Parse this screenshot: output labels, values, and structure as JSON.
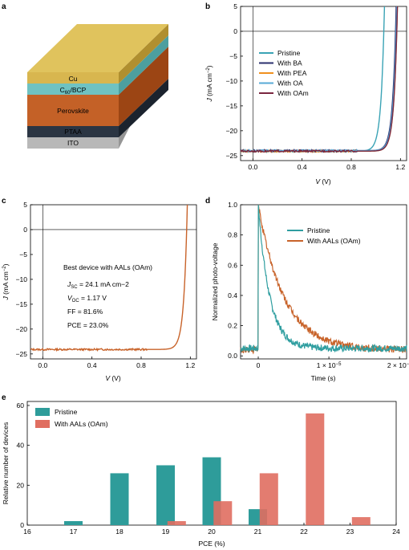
{
  "panel_a": {
    "label": "a",
    "layers": [
      "Cu",
      "C60/BCP",
      "Perovskite",
      "PTAA",
      "ITO"
    ],
    "layer_colors": [
      "#d8b64f",
      "#6fc2c2",
      "#c46127",
      "#2b3543",
      "#b8b8b8"
    ]
  },
  "panel_b": {
    "label": "b",
    "chart_data": {
      "type": "line",
      "xlabel": "V (V)",
      "ylabel": "J (mA cm−2)",
      "xlim": [
        -0.1,
        1.25
      ],
      "ylim": [
        -26,
        5
      ],
      "xticks": [
        "0.0",
        "0.4",
        "0.8",
        "1.2"
      ],
      "yticks": [
        "5",
        "0",
        "−5",
        "−10",
        "−15",
        "−20",
        "−25"
      ],
      "series": [
        {
          "name": "Pristine",
          "color": "#3aa3b5",
          "jsc": 24.1,
          "voc": 1.065
        },
        {
          "name": "With BA",
          "color": "#2a2f6e",
          "jsc": 24.0,
          "voc": 1.16
        },
        {
          "name": "With PEA",
          "color": "#f0901e",
          "jsc": 24.1,
          "voc": 1.17
        },
        {
          "name": "With OA",
          "color": "#57a9d6",
          "jsc": 24.0,
          "voc": 1.165
        },
        {
          "name": "With OAm",
          "color": "#7a2640",
          "jsc": 24.1,
          "voc": 1.17
        }
      ]
    }
  },
  "panel_c": {
    "label": "c",
    "chart_data": {
      "type": "line",
      "xlabel": "V (V)",
      "ylabel": "J (mA cm−2)",
      "xlim": [
        -0.1,
        1.25
      ],
      "ylim": [
        -26,
        5
      ],
      "xticks": [
        "0.0",
        "0.4",
        "0.8",
        "1.2"
      ],
      "yticks": [
        "5",
        "0",
        "−5",
        "−10",
        "−15",
        "−20",
        "−25"
      ],
      "series": [
        {
          "name": "With AALs (OAm)",
          "color": "#c8632a",
          "jsc": 24.1,
          "voc": 1.17
        }
      ]
    },
    "annotation": {
      "title": "Best device with AALs (OAm)",
      "jsc_sym": "J",
      "jsc_sub": "SC",
      "jsc_val": " = 24.1 mA cm−2",
      "voc_sym": "V",
      "voc_sub": "OC",
      "voc_val": " = 1.17 V",
      "ff": "FF = 81.6%",
      "pce": "PCE = 23.0%"
    }
  },
  "panel_d": {
    "label": "d",
    "chart_data": {
      "type": "line",
      "xlabel": "Time (s)",
      "ylabel": "Normalized photo-voltage",
      "xlim": [
        -2.5e-06,
        2.1e-05
      ],
      "ylim": [
        -0.02,
        1.0
      ],
      "xticks": [
        "0",
        "1 × 10−5",
        "2 × 10−5"
      ],
      "yticks": [
        "0.0",
        "0.2",
        "0.4",
        "0.6",
        "0.8",
        "1.0"
      ],
      "series": [
        {
          "name": "Pristine",
          "color": "#2f9ea0",
          "tau": 1.6e-06,
          "baseline": 0.05
        },
        {
          "name": "With AALs (OAm)",
          "color": "#c8632a",
          "tau": 3.6e-06,
          "baseline": 0.04
        }
      ]
    }
  },
  "panel_e": {
    "label": "e",
    "chart_data": {
      "type": "bar",
      "xlabel": "PCE (%)",
      "ylabel": "Relative number of devices",
      "xlim": [
        16,
        24
      ],
      "ylim": [
        0,
        62
      ],
      "xticks": [
        "16",
        "17",
        "18",
        "19",
        "20",
        "21",
        "22",
        "23",
        "24"
      ],
      "yticks": [
        "0",
        "20",
        "40",
        "60"
      ],
      "categories": [
        17,
        18,
        19,
        20,
        21,
        22,
        23
      ],
      "series": [
        {
          "name": "Pristine",
          "color": "#2e9c9a",
          "values": [
            2,
            26,
            30,
            34,
            8,
            0,
            0
          ]
        },
        {
          "name": "With AALs (OAm)",
          "color": "#e06e60",
          "values": [
            0,
            0,
            2,
            12,
            26,
            56,
            4
          ]
        }
      ]
    }
  }
}
